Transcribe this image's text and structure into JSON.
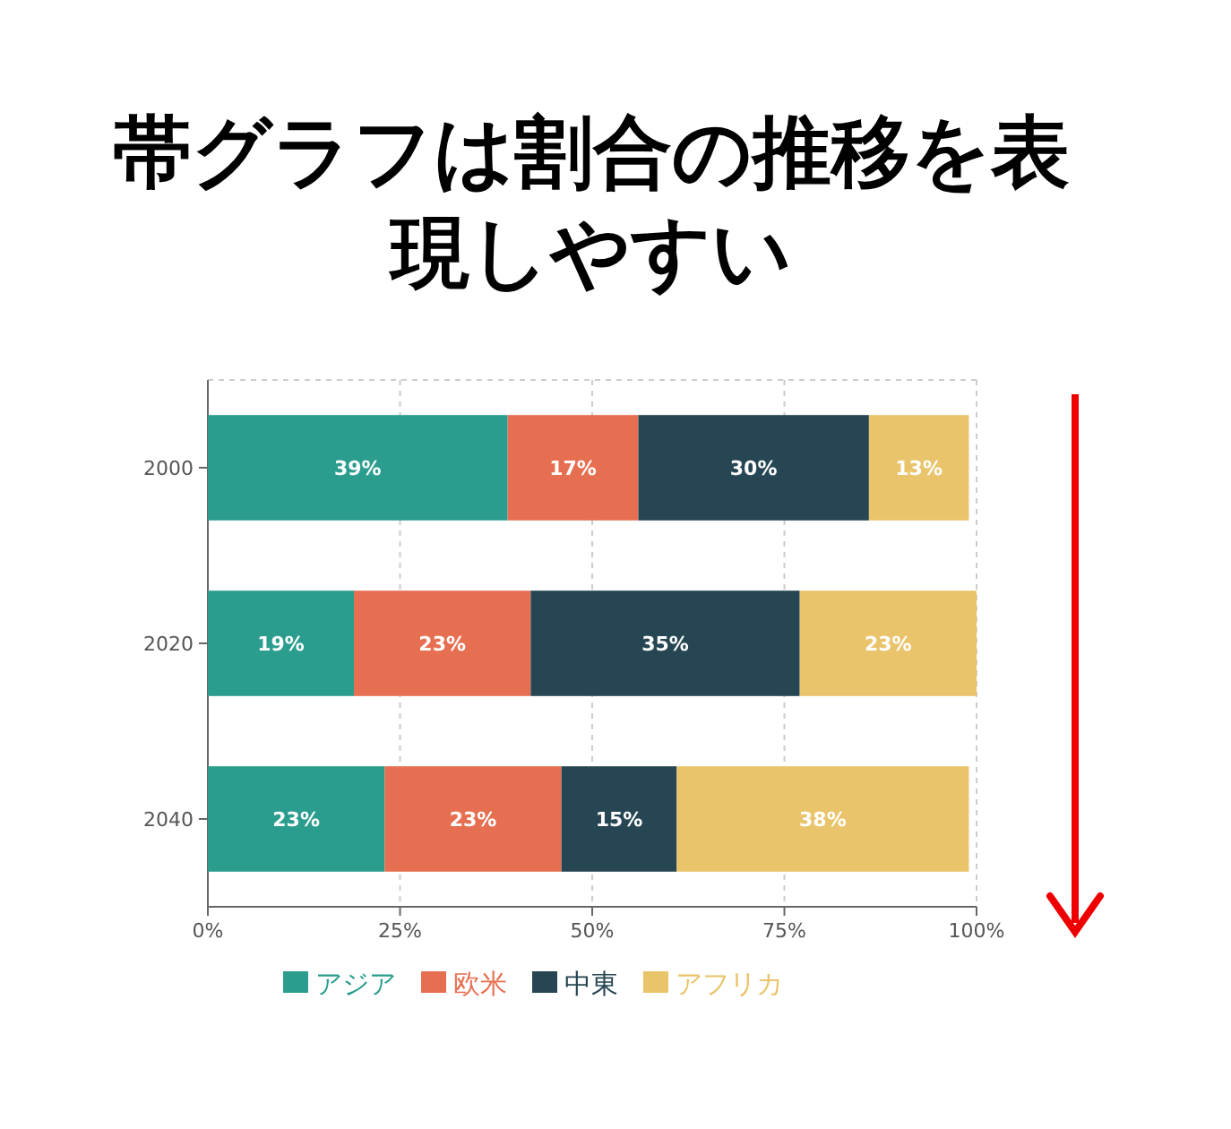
{
  "chart_data": {
    "type": "bar",
    "orientation": "horizontal",
    "stacked": true,
    "title": "帯グラフは割合の推移を表現しやすい",
    "categories": [
      "2000",
      "2020",
      "2040"
    ],
    "series": [
      {
        "name": "アジア",
        "color": "#2a9d8f",
        "values": [
          39,
          19,
          23
        ],
        "value_labels": [
          "39%",
          "19%",
          "23%"
        ]
      },
      {
        "name": "欧米",
        "color": "#e76f51",
        "values": [
          17,
          23,
          23
        ],
        "value_labels": [
          "17%",
          "23%",
          "23%"
        ]
      },
      {
        "name": "中東",
        "color": "#264653",
        "values": [
          30,
          35,
          15
        ],
        "value_labels": [
          "30%",
          "35%",
          "15%"
        ]
      },
      {
        "name": "アフリカ",
        "color": "#e9c46a",
        "values": [
          13,
          23,
          38
        ],
        "value_labels": [
          "13%",
          "23%",
          "38%"
        ]
      }
    ],
    "xlim": [
      0,
      100
    ],
    "xticks": [
      {
        "value": 0,
        "label": "0%"
      },
      {
        "value": 25,
        "label": "25%"
      },
      {
        "value": 50,
        "label": "50%"
      },
      {
        "value": 75,
        "label": "75%"
      },
      {
        "value": 100,
        "label": "100%"
      }
    ],
    "grid": "x",
    "legend": "bottom"
  }
}
